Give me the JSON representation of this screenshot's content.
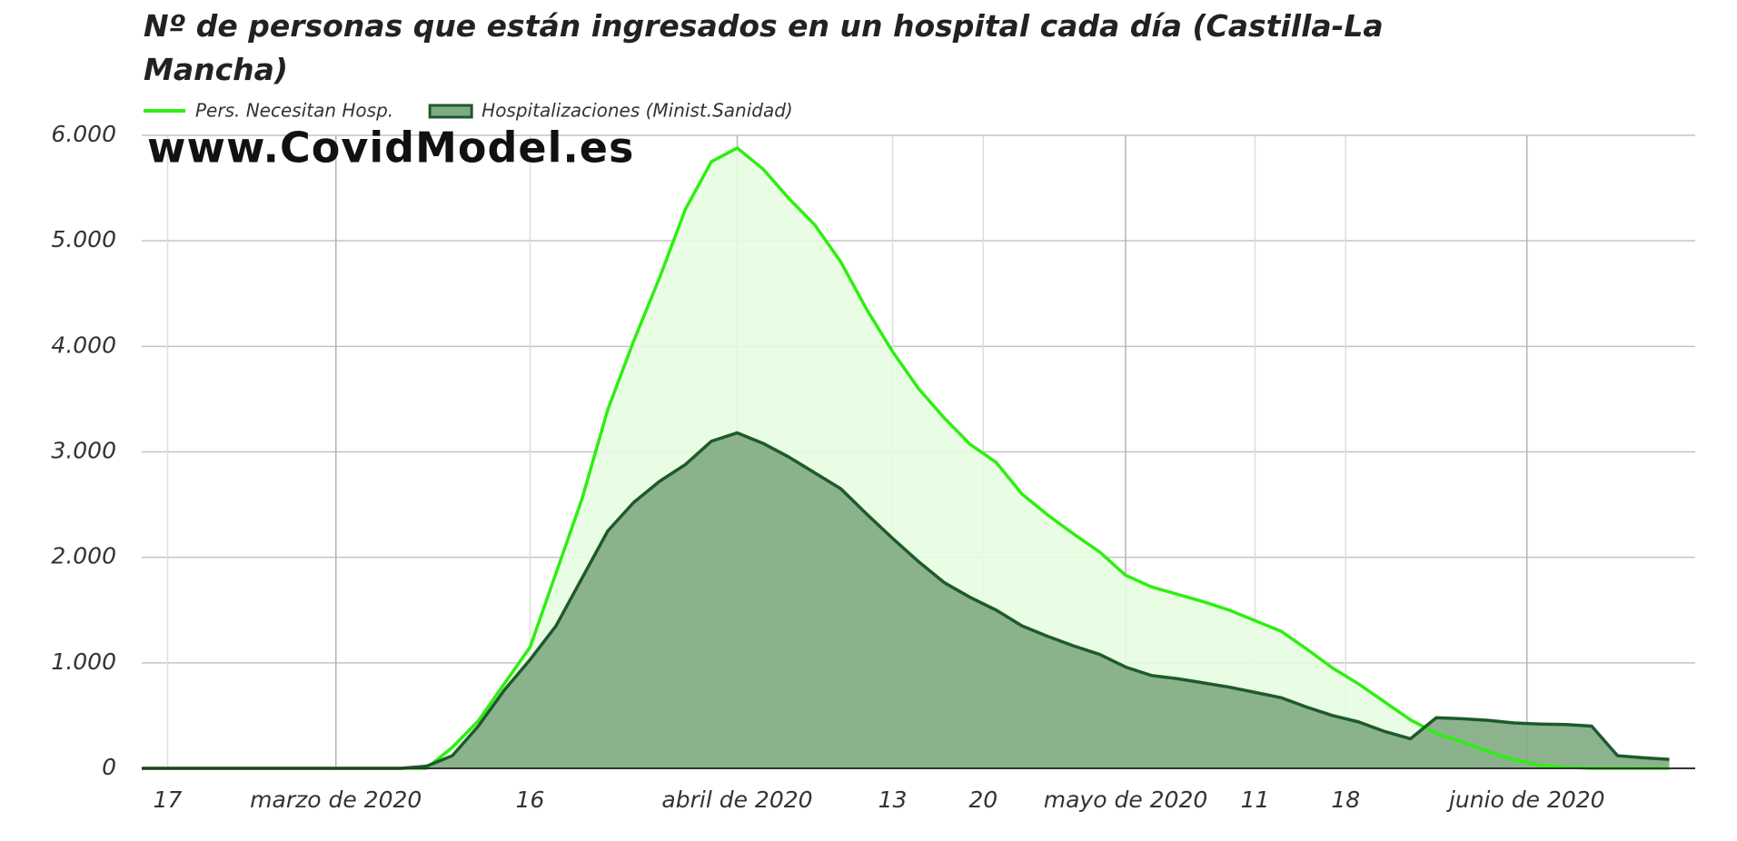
{
  "chart_data": {
    "type": "area",
    "title": "Nº de personas que están ingresados en un hospital cada día (Castilla-La Mancha)",
    "annotation": "www.CovidModel.es",
    "x": [
      "2020-02-15",
      "2020-02-17",
      "2020-02-19",
      "2020-02-21",
      "2020-02-23",
      "2020-02-25",
      "2020-02-27",
      "2020-02-29",
      "2020-03-02",
      "2020-03-04",
      "2020-03-06",
      "2020-03-08",
      "2020-03-10",
      "2020-03-12",
      "2020-03-14",
      "2020-03-16",
      "2020-03-18",
      "2020-03-20",
      "2020-03-22",
      "2020-03-24",
      "2020-03-26",
      "2020-03-28",
      "2020-03-30",
      "2020-04-01",
      "2020-04-03",
      "2020-04-05",
      "2020-04-07",
      "2020-04-09",
      "2020-04-11",
      "2020-04-13",
      "2020-04-15",
      "2020-04-17",
      "2020-04-19",
      "2020-04-21",
      "2020-04-23",
      "2020-04-25",
      "2020-04-27",
      "2020-04-29",
      "2020-05-01",
      "2020-05-03",
      "2020-05-05",
      "2020-05-07",
      "2020-05-09",
      "2020-05-11",
      "2020-05-13",
      "2020-05-15",
      "2020-05-17",
      "2020-05-19",
      "2020-05-21",
      "2020-05-23",
      "2020-05-25",
      "2020-05-27",
      "2020-05-29",
      "2020-05-31",
      "2020-06-02",
      "2020-06-04",
      "2020-06-06",
      "2020-06-08",
      "2020-06-10",
      "2020-06-12"
    ],
    "series": [
      {
        "name": "Pers. Necesitan Hosp.",
        "color": "#2fee12",
        "fill": "#e6fde0",
        "values": [
          0,
          0,
          0,
          0,
          0,
          0,
          0,
          0,
          0,
          0,
          0,
          0,
          200,
          450,
          800,
          1150,
          1850,
          2550,
          3400,
          4050,
          4650,
          5300,
          5750,
          5880,
          5680,
          5400,
          5150,
          4800,
          4350,
          3950,
          3600,
          3320,
          3070,
          2900,
          2600,
          2400,
          2220,
          2050,
          1830,
          1720,
          1650,
          1580,
          1500,
          1400,
          1300,
          1130,
          950,
          800,
          630,
          460,
          330,
          250,
          160,
          80,
          30,
          10,
          0,
          0,
          0,
          0
        ]
      },
      {
        "name": "Hospitalizaciones (Minist.Sanidad)",
        "color": "#1d5a2c",
        "fill": "#7fab82",
        "values": [
          0,
          0,
          0,
          0,
          0,
          0,
          0,
          0,
          0,
          0,
          0,
          20,
          120,
          400,
          740,
          1030,
          1350,
          1800,
          2250,
          2520,
          2720,
          2880,
          3100,
          3180,
          3080,
          2950,
          2800,
          2650,
          2410,
          2180,
          1960,
          1760,
          1620,
          1500,
          1350,
          1250,
          1160,
          1080,
          960,
          880,
          850,
          810,
          770,
          720,
          670,
          580,
          500,
          440,
          350,
          280,
          480,
          470,
          455,
          430,
          420,
          415,
          400,
          120,
          100,
          85
        ]
      }
    ],
    "xlim": [
      "2020-02-15",
      "2020-06-14"
    ],
    "xticks": [
      {
        "value": "2020-02-17",
        "label": "17"
      },
      {
        "value": "2020-03-01",
        "label": "marzo de 2020"
      },
      {
        "value": "2020-03-16",
        "label": "16"
      },
      {
        "value": "2020-04-01",
        "label": "abril de 2020"
      },
      {
        "value": "2020-04-13",
        "label": "13"
      },
      {
        "value": "2020-04-20",
        "label": "20"
      },
      {
        "value": "2020-05-01",
        "label": "mayo de 2020"
      },
      {
        "value": "2020-05-11",
        "label": "11"
      },
      {
        "value": "2020-05-18",
        "label": "18"
      },
      {
        "value": "2020-06-01",
        "label": "junio de 2020"
      }
    ],
    "ylim": [
      0,
      6000
    ],
    "yticks": [
      0,
      {
        "value": 1000,
        "label": "1.000"
      },
      {
        "value": 2000,
        "label": "2.000"
      },
      {
        "value": 3000,
        "label": "3.000"
      },
      {
        "value": 4000,
        "label": "4.000"
      },
      {
        "value": 5000,
        "label": "5.000"
      },
      {
        "value": 6000,
        "label": "6.000"
      }
    ],
    "grid": true,
    "legend": "top-left"
  }
}
